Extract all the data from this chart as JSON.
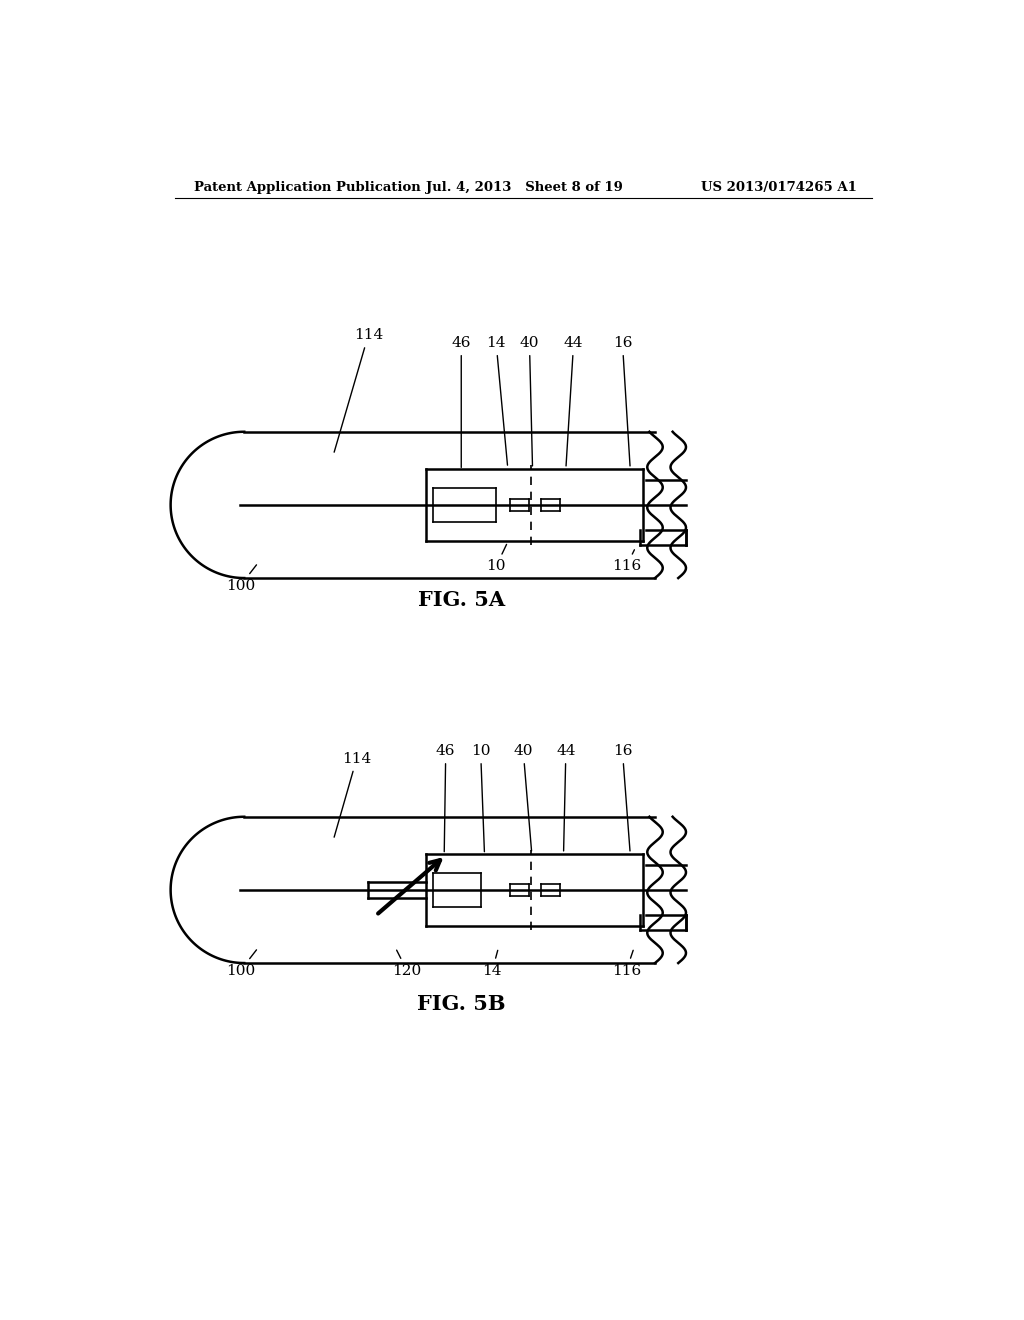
{
  "bg_color": "#ffffff",
  "line_color": "#000000",
  "header_left": "Patent Application Publication",
  "header_mid": "Jul. 4, 2013   Sheet 8 of 19",
  "header_right": "US 2013/0174265 A1",
  "fig5a_caption": "FIG. 5A",
  "fig5b_caption": "FIG. 5B"
}
